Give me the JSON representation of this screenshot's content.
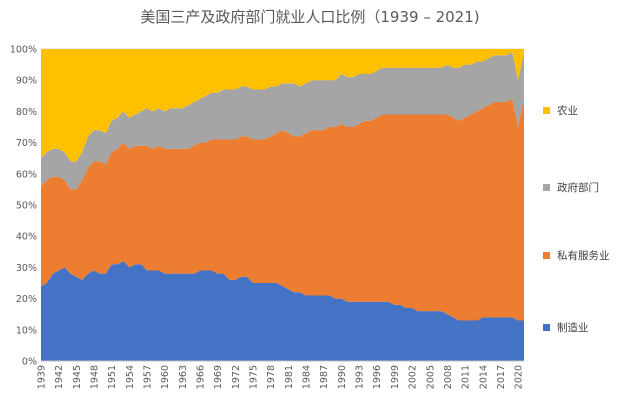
{
  "chart_data": {
    "type": "area",
    "stacked_percent": true,
    "title": "美国三产及政府部门就业人口比例（1939 – 2021)",
    "xlabel": "",
    "ylabel": "",
    "ylim": [
      0,
      100
    ],
    "y_ticks": [
      "0%",
      "10%",
      "20%",
      "30%",
      "40%",
      "50%",
      "60%",
      "70%",
      "80%",
      "90%",
      "100%"
    ],
    "x_tick_labels": [
      "1939",
      "1942",
      "1945",
      "1948",
      "1951",
      "1954",
      "1957",
      "1960",
      "1963",
      "1966",
      "1969",
      "1972",
      "1975",
      "1978",
      "1981",
      "1984",
      "1987",
      "1990",
      "1993",
      "1996",
      "1999",
      "2002",
      "2005",
      "2008",
      "2011",
      "2014",
      "2017",
      "2020"
    ],
    "legend_position": "right",
    "x": [
      1939,
      1940,
      1941,
      1942,
      1943,
      1944,
      1945,
      1946,
      1947,
      1948,
      1949,
      1950,
      1951,
      1952,
      1953,
      1954,
      1955,
      1956,
      1957,
      1958,
      1959,
      1960,
      1961,
      1962,
      1963,
      1964,
      1965,
      1966,
      1967,
      1968,
      1969,
      1970,
      1971,
      1972,
      1973,
      1974,
      1975,
      1976,
      1977,
      1978,
      1979,
      1980,
      1981,
      1982,
      1983,
      1984,
      1985,
      1986,
      1987,
      1988,
      1989,
      1990,
      1991,
      1992,
      1993,
      1994,
      1995,
      1996,
      1997,
      1998,
      1999,
      2000,
      2001,
      2002,
      2003,
      2004,
      2005,
      2006,
      2007,
      2008,
      2009,
      2010,
      2011,
      2012,
      2013,
      2014,
      2015,
      2016,
      2017,
      2018,
      2019,
      2020,
      2021
    ],
    "series": [
      {
        "name": "制造业",
        "color": "#4472C4",
        "values": [
          24,
          25,
          28,
          29,
          30,
          28,
          27,
          26,
          28,
          29,
          28,
          28,
          31,
          31,
          32,
          30,
          31,
          31,
          29,
          29,
          29,
          28,
          28,
          28,
          28,
          28,
          28,
          29,
          29,
          29,
          28,
          28,
          26,
          26,
          27,
          27,
          25,
          25,
          25,
          25,
          25,
          24,
          23,
          22,
          22,
          21,
          21,
          21,
          21,
          21,
          20,
          20,
          19,
          19,
          19,
          19,
          19,
          19,
          19,
          19,
          18,
          18,
          17,
          17,
          16,
          16,
          16,
          16,
          16,
          15,
          14,
          13,
          13,
          13,
          13,
          14,
          14,
          14,
          14,
          14,
          14,
          13,
          13
        ]
      },
      {
        "name": "私有服务业",
        "color": "#ED7D31",
        "values": [
          32,
          33,
          31,
          30,
          28,
          27,
          28,
          32,
          34,
          35,
          36,
          35,
          36,
          37,
          38,
          38,
          38,
          38,
          40,
          39,
          40,
          40,
          40,
          40,
          40,
          40,
          41,
          41,
          41,
          42,
          43,
          43,
          45,
          45,
          45,
          45,
          46,
          46,
          46,
          47,
          48,
          50,
          50,
          50,
          50,
          52,
          53,
          53,
          53,
          54,
          55,
          56,
          56,
          56,
          57,
          58,
          58,
          59,
          60,
          60,
          61,
          61,
          62,
          62,
          63,
          63,
          63,
          63,
          63,
          64,
          64,
          64,
          65,
          66,
          67,
          67,
          68,
          69,
          69,
          69,
          70,
          62,
          71
        ]
      },
      {
        "name": "政府部门",
        "color": "#A5A5A5",
        "values": [
          9,
          9,
          9,
          9,
          9,
          9,
          9,
          9,
          10,
          10,
          10,
          10,
          10,
          10,
          10,
          10,
          10,
          11,
          12,
          12,
          12,
          12,
          13,
          13,
          13,
          14,
          14,
          14,
          15,
          15,
          15,
          16,
          16,
          16,
          16,
          16,
          16,
          16,
          16,
          16,
          15,
          15,
          16,
          17,
          16,
          16,
          16,
          16,
          16,
          15,
          15,
          16,
          16,
          16,
          16,
          15,
          15,
          15,
          15,
          15,
          15,
          15,
          15,
          15,
          15,
          15,
          15,
          15,
          15,
          16,
          16,
          17,
          17,
          16,
          16,
          15,
          15,
          15,
          15,
          15,
          15,
          15,
          15
        ]
      },
      {
        "name": "农业",
        "color": "#FFC000",
        "values": [
          35,
          33,
          32,
          32,
          33,
          36,
          36,
          33,
          28,
          26,
          26,
          27,
          23,
          22,
          20,
          22,
          21,
          20,
          19,
          20,
          19,
          20,
          19,
          19,
          19,
          18,
          17,
          16,
          15,
          14,
          14,
          13,
          13,
          13,
          12,
          12,
          13,
          13,
          13,
          12,
          12,
          11,
          11,
          11,
          12,
          11,
          10,
          10,
          10,
          10,
          10,
          8,
          9,
          9,
          8,
          8,
          8,
          7,
          6,
          6,
          6,
          6,
          6,
          6,
          6,
          6,
          6,
          6,
          6,
          5,
          6,
          6,
          5,
          5,
          4,
          4,
          3,
          2,
          2,
          2,
          1,
          10,
          1
        ]
      }
    ]
  }
}
